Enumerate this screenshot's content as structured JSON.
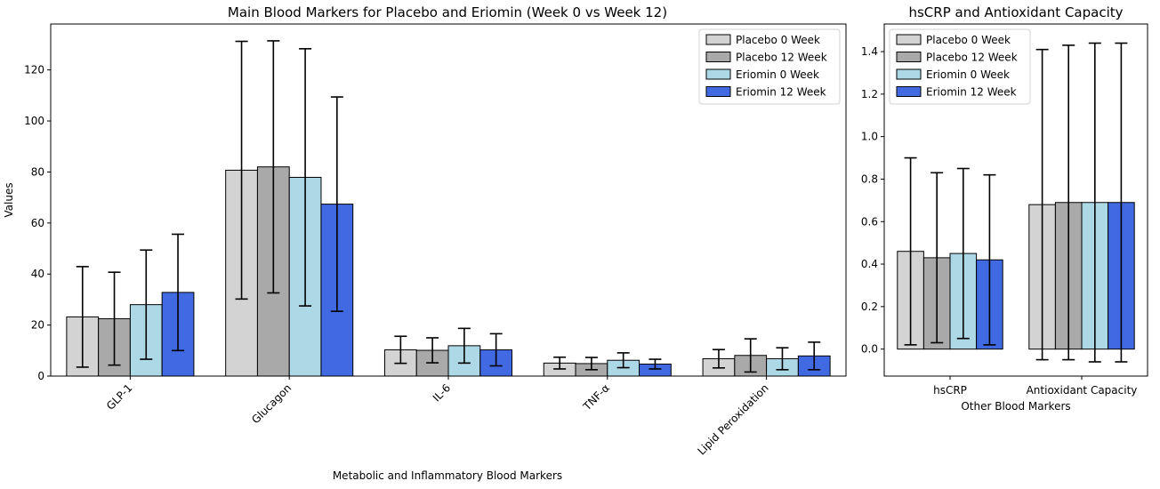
{
  "chart_data": [
    {
      "type": "bar",
      "title": "Main Blood Markers for Placebo and Eriomin (Week 0 vs Week 12)",
      "xlabel": "Metabolic and Inflammatory Blood Markers",
      "ylabel": "Values",
      "ylim": [
        0,
        138
      ],
      "yticks": [
        0,
        20,
        40,
        60,
        80,
        100,
        120
      ],
      "categories": [
        "GLP-1",
        "Glucagon",
        "IL-6",
        "TNF-α",
        "Lipid Peroxidation"
      ],
      "legend_position": "top-right",
      "grid": false,
      "series": [
        {
          "name": "Placebo 0 Week",
          "color": "#d3d3d3",
          "values": [
            23.2,
            80.7,
            10.3,
            5.1,
            6.8
          ],
          "errors": [
            19.7,
            50.5,
            5.3,
            2.3,
            3.6
          ]
        },
        {
          "name": "Placebo 12 Week",
          "color": "#a9a9a9",
          "values": [
            22.5,
            82.0,
            10.1,
            4.9,
            8.1
          ],
          "errors": [
            18.2,
            49.4,
            4.9,
            2.4,
            6.5
          ]
        },
        {
          "name": "Eriomin 0 Week",
          "color": "#add8e6",
          "values": [
            28.0,
            77.9,
            11.9,
            6.2,
            6.8
          ],
          "errors": [
            21.4,
            50.4,
            6.8,
            2.9,
            4.3
          ]
        },
        {
          "name": "Eriomin 12 Week",
          "color": "#4169e1",
          "values": [
            32.8,
            67.4,
            10.3,
            4.7,
            7.9
          ],
          "errors": [
            22.8,
            42.0,
            6.3,
            1.9,
            5.4
          ]
        }
      ]
    },
    {
      "type": "bar",
      "title": "hsCRP and Antioxidant Capacity",
      "xlabel": "Other Blood Markers",
      "ylabel": "",
      "ylim": [
        -0.127,
        1.53
      ],
      "yticks": [
        "0.0",
        "0.2",
        "0.4",
        "0.6",
        "0.8",
        "1.0",
        "1.2",
        "1.4"
      ],
      "categories": [
        "hsCRP",
        "Antioxidant Capacity"
      ],
      "legend_position": "top-left",
      "grid": false,
      "series": [
        {
          "name": "Placebo 0 Week",
          "color": "#d3d3d3",
          "values": [
            0.46,
            0.68
          ],
          "errors": [
            0.44,
            0.73
          ]
        },
        {
          "name": "Placebo 12 Week",
          "color": "#a9a9a9",
          "values": [
            0.43,
            0.69
          ],
          "errors": [
            0.4,
            0.74
          ]
        },
        {
          "name": "Eriomin 0 Week",
          "color": "#add8e6",
          "values": [
            0.45,
            0.69
          ],
          "errors": [
            0.4,
            0.75
          ]
        },
        {
          "name": "Eriomin 12 Week",
          "color": "#4169e1",
          "values": [
            0.42,
            0.69
          ],
          "errors": [
            0.4,
            0.75
          ]
        }
      ]
    }
  ]
}
